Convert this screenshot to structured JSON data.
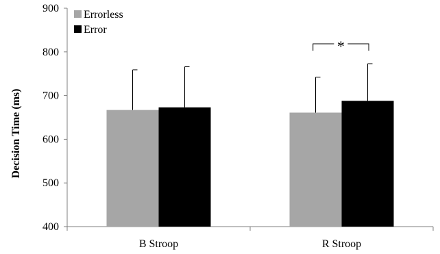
{
  "chart_data": {
    "type": "bar",
    "ylabel": "Decision Time  (ms)",
    "ylim": [
      400,
      900
    ],
    "yticks": [
      400,
      500,
      600,
      700,
      800,
      900
    ],
    "categories": [
      "B Stroop",
      "R Stroop"
    ],
    "series": [
      {
        "name": "Errorless",
        "color": "#a6a6a6",
        "values": [
          667,
          661
        ],
        "error": [
          92,
          81
        ]
      },
      {
        "name": "Error",
        "color": "#000000",
        "values": [
          673,
          688
        ],
        "error": [
          93,
          85
        ]
      }
    ],
    "legend": {
      "position": "top-left"
    },
    "grid": false,
    "annotations": [
      {
        "text": "*",
        "type": "significance-bracket",
        "category": "R Stroop"
      }
    ]
  }
}
